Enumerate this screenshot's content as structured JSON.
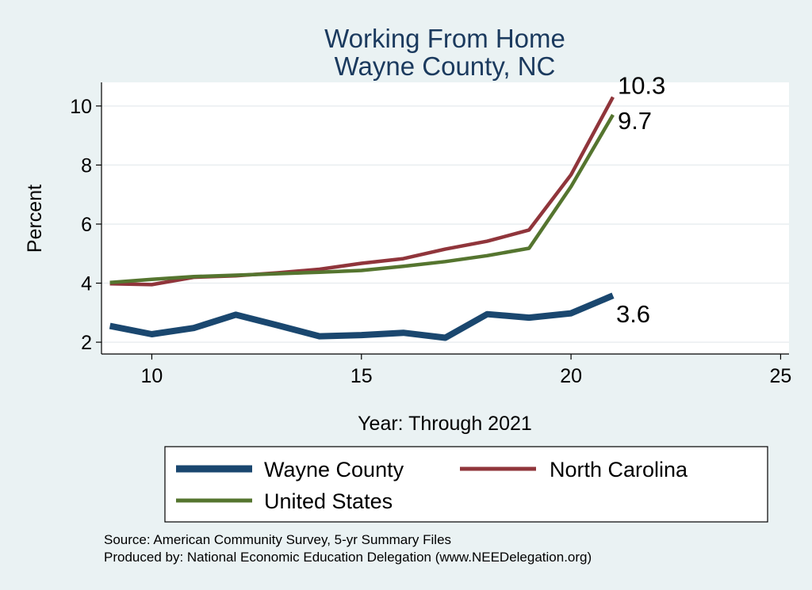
{
  "chart_data": {
    "type": "line",
    "title": [
      "Working From Home",
      "Wayne County, NC"
    ],
    "xlabel": "Year: Through 2021",
    "ylabel": "Percent",
    "xlim": [
      8.8,
      25.2
    ],
    "ylim": [
      1.6,
      10.8
    ],
    "xticks": [
      10,
      15,
      20,
      25
    ],
    "yticks": [
      2,
      4,
      6,
      8,
      10
    ],
    "grid": "horizontal",
    "x": [
      9,
      10,
      11,
      12,
      13,
      14,
      15,
      16,
      17,
      18,
      19,
      20,
      21
    ],
    "series": [
      {
        "name": "Wayne County",
        "color": "#1a476f",
        "style": "thick",
        "values": [
          2.55,
          2.27,
          2.48,
          2.93,
          2.57,
          2.2,
          2.24,
          2.32,
          2.15,
          2.95,
          2.83,
          2.98,
          3.58
        ],
        "end_label": "3.6"
      },
      {
        "name": "North Carolina",
        "color": "#90353b",
        "style": "medium",
        "values": [
          3.98,
          3.95,
          4.2,
          4.25,
          4.35,
          4.47,
          4.67,
          4.83,
          5.15,
          5.42,
          5.8,
          7.67,
          10.3
        ],
        "end_label": "10.3"
      },
      {
        "name": "United States",
        "color": "#55752f",
        "style": "medium",
        "values": [
          4.02,
          4.13,
          4.22,
          4.27,
          4.32,
          4.37,
          4.43,
          4.57,
          4.73,
          4.93,
          5.18,
          7.27,
          9.7
        ],
        "end_label": "9.7"
      }
    ],
    "legend": {
      "position": "bottom",
      "entries": [
        "Wayne County",
        "North Carolina",
        "United States"
      ]
    },
    "notes": [
      "Source: American Community Survey, 5-yr Summary Files",
      "Produced by: National Economic Education Delegation (www.NEEDelegation.org)"
    ]
  }
}
